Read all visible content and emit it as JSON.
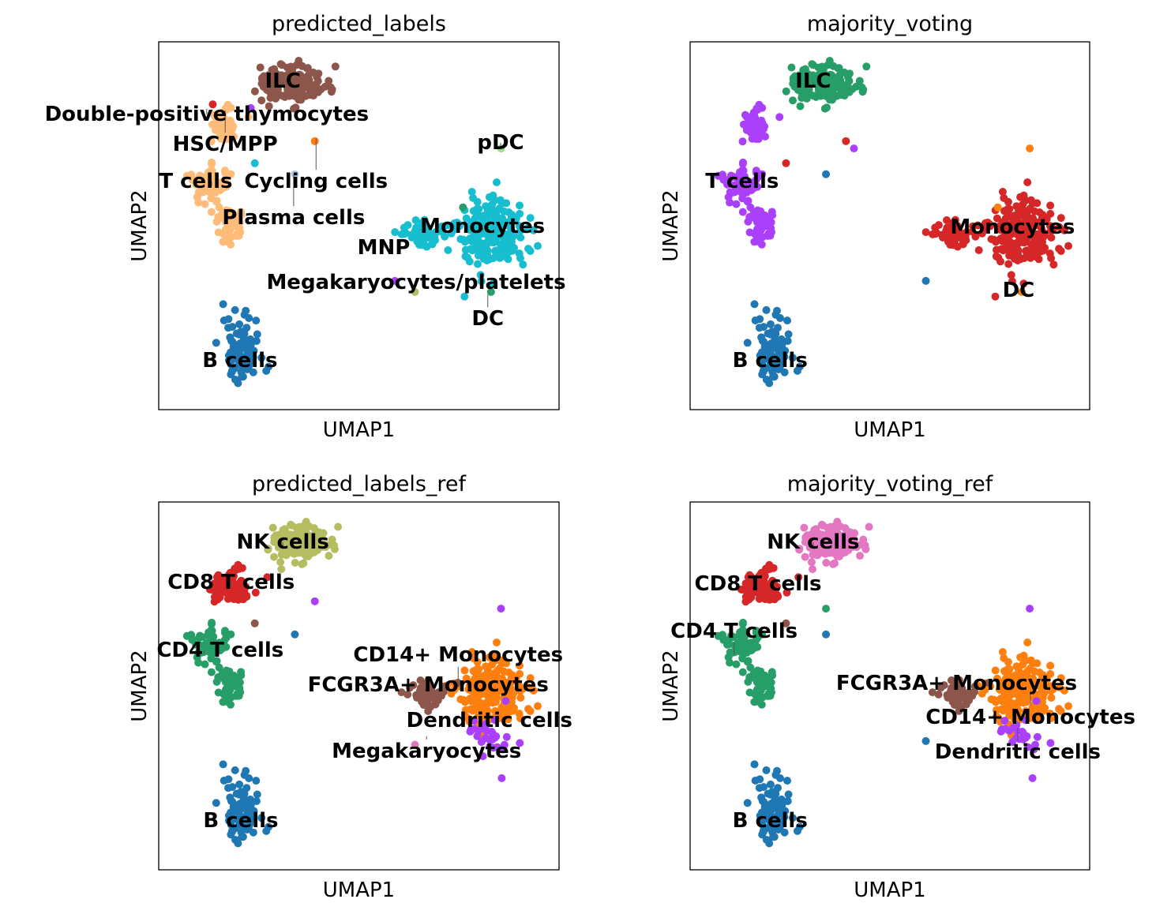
{
  "chart_data": [
    {
      "type": "scatter",
      "title": "predicted_labels",
      "xlabel": "UMAP1",
      "ylabel": "UMAP2",
      "xlim": [
        0,
        10
      ],
      "ylim": [
        0,
        10
      ],
      "grid": false,
      "clusters": [
        {
          "cx": 2.05,
          "cy": 1.6,
          "sx": 0.45,
          "sy": 0.75,
          "n": 90,
          "color": "#1f77b4"
        },
        {
          "cx": 1.3,
          "cy": 6.1,
          "sx": 0.4,
          "sy": 0.45,
          "n": 60,
          "color": "#ffbb78"
        },
        {
          "cx": 1.75,
          "cy": 5.0,
          "sx": 0.35,
          "sy": 0.4,
          "n": 50,
          "color": "#ffbb78"
        },
        {
          "cx": 1.6,
          "cy": 7.7,
          "sx": 0.35,
          "sy": 0.5,
          "n": 45,
          "color": "#ffbb78"
        },
        {
          "cx": 3.4,
          "cy": 8.85,
          "sx": 0.75,
          "sy": 0.45,
          "n": 160,
          "color": "#8c564b"
        },
        {
          "cx": 8.3,
          "cy": 4.8,
          "sx": 0.8,
          "sy": 0.95,
          "n": 220,
          "color": "#17becf"
        },
        {
          "cx": 6.6,
          "cy": 4.75,
          "sx": 0.55,
          "sy": 0.3,
          "n": 60,
          "color": "#17becf"
        }
      ],
      "extra_points": [
        {
          "x": 8.55,
          "y": 7.1,
          "color": "#98df8a"
        },
        {
          "x": 7.6,
          "y": 5.5,
          "color": "#279e68"
        },
        {
          "x": 8.3,
          "y": 3.2,
          "color": "#279e68"
        },
        {
          "x": 5.9,
          "y": 3.5,
          "color": "#aa40fc"
        },
        {
          "x": 6.4,
          "y": 3.2,
          "color": "#b5bd61"
        },
        {
          "x": 3.9,
          "y": 7.3,
          "color": "#ff7f0e"
        },
        {
          "x": 3.4,
          "y": 6.4,
          "color": "#aec7e8"
        },
        {
          "x": 2.4,
          "y": 6.7,
          "color": "#17becf"
        },
        {
          "x": 1.35,
          "y": 8.3,
          "color": "#d62728"
        },
        {
          "x": 2.3,
          "y": 8.2,
          "color": "#aa40fc"
        }
      ],
      "labels": [
        {
          "text": "ILC",
          "x": 3.1,
          "y": 8.82
        },
        {
          "text": "Double-positive thymocytes",
          "x": 1.2,
          "y": 8.18
        },
        {
          "text": "HSC/MPP",
          "x": 1.66,
          "y": 8.13
        },
        {
          "text": "Cycling cells",
          "x": 3.93,
          "y": 7.38
        },
        {
          "text": "pDC",
          "x": 8.54,
          "y": 7.15
        },
        {
          "text": "Plasma cells",
          "x": 3.37,
          "y": 6.39
        },
        {
          "text": "T cells",
          "x": 1.32,
          "y": 6.09
        },
        {
          "text": "MNP",
          "x": 5.62,
          "y": 4.55
        },
        {
          "text": "Monocytes",
          "x": 8.09,
          "y": 4.87
        },
        {
          "text": "Megakaryocytes/platelets",
          "x": 6.43,
          "y": 3.35
        },
        {
          "text": "DC",
          "x": 8.22,
          "y": 3.13
        },
        {
          "text": "B cells",
          "x": 2.03,
          "y": 1.22
        }
      ]
    },
    {
      "type": "scatter",
      "title": "majority_voting",
      "xlabel": "UMAP1",
      "ylabel": "UMAP2",
      "xlim": [
        0,
        10
      ],
      "ylim": [
        0,
        10
      ],
      "grid": false,
      "clusters": [
        {
          "cx": 2.05,
          "cy": 1.6,
          "sx": 0.45,
          "sy": 0.75,
          "n": 90,
          "color": "#1f77b4"
        },
        {
          "cx": 1.3,
          "cy": 6.1,
          "sx": 0.4,
          "sy": 0.45,
          "n": 60,
          "color": "#aa40fc"
        },
        {
          "cx": 1.75,
          "cy": 5.0,
          "sx": 0.35,
          "sy": 0.4,
          "n": 50,
          "color": "#aa40fc"
        },
        {
          "cx": 1.6,
          "cy": 7.7,
          "sx": 0.35,
          "sy": 0.5,
          "n": 45,
          "color": "#aa40fc"
        },
        {
          "cx": 3.4,
          "cy": 8.85,
          "sx": 0.75,
          "sy": 0.45,
          "n": 160,
          "color": "#279e68"
        },
        {
          "cx": 8.3,
          "cy": 4.8,
          "sx": 0.8,
          "sy": 0.95,
          "n": 220,
          "color": "#d62728"
        },
        {
          "cx": 6.6,
          "cy": 4.75,
          "sx": 0.55,
          "sy": 0.3,
          "n": 60,
          "color": "#d62728"
        }
      ],
      "extra_points": [
        {
          "x": 8.5,
          "y": 7.1,
          "color": "#ff7f0e"
        },
        {
          "x": 7.7,
          "y": 5.5,
          "color": "#ff7f0e"
        },
        {
          "x": 8.3,
          "y": 3.2,
          "color": "#ff7f0e"
        },
        {
          "x": 5.9,
          "y": 3.5,
          "color": "#1f77b4"
        },
        {
          "x": 3.4,
          "y": 6.4,
          "color": "#1f77b4"
        },
        {
          "x": 2.4,
          "y": 6.7,
          "color": "#d62728"
        },
        {
          "x": 3.9,
          "y": 7.3,
          "color": "#d62728"
        },
        {
          "x": 4.1,
          "y": 7.1,
          "color": "#aa40fc"
        }
      ],
      "labels": [
        {
          "text": "ILC",
          "x": 3.08,
          "y": 8.82
        },
        {
          "text": "T cells",
          "x": 1.3,
          "y": 6.09
        },
        {
          "text": "Monocytes",
          "x": 8.07,
          "y": 4.85
        },
        {
          "text": "DC",
          "x": 8.22,
          "y": 3.13
        },
        {
          "text": "B cells",
          "x": 2.0,
          "y": 1.22
        }
      ]
    },
    {
      "type": "scatter",
      "title": "predicted_labels_ref",
      "xlabel": "UMAP1",
      "ylabel": "UMAP2",
      "xlim": [
        0,
        10
      ],
      "ylim": [
        0,
        10
      ],
      "grid": false,
      "clusters": [
        {
          "cx": 2.05,
          "cy": 1.6,
          "sx": 0.45,
          "sy": 0.75,
          "n": 90,
          "color": "#1f77b4"
        },
        {
          "cx": 1.3,
          "cy": 6.1,
          "sx": 0.4,
          "sy": 0.45,
          "n": 60,
          "color": "#279e68"
        },
        {
          "cx": 1.75,
          "cy": 5.0,
          "sx": 0.35,
          "sy": 0.4,
          "n": 50,
          "color": "#279e68"
        },
        {
          "cx": 1.8,
          "cy": 7.7,
          "sx": 0.5,
          "sy": 0.5,
          "n": 80,
          "color": "#d62728"
        },
        {
          "cx": 3.6,
          "cy": 8.9,
          "sx": 0.65,
          "sy": 0.4,
          "n": 140,
          "color": "#b5bd61"
        },
        {
          "cx": 8.3,
          "cy": 4.8,
          "sx": 0.8,
          "sy": 0.95,
          "n": 200,
          "color": "#ff7f0e"
        },
        {
          "cx": 6.7,
          "cy": 4.75,
          "sx": 0.5,
          "sy": 0.3,
          "n": 60,
          "color": "#8c564b"
        },
        {
          "cx": 8.2,
          "cy": 3.7,
          "sx": 0.5,
          "sy": 0.6,
          "n": 30,
          "color": "#aa40fc"
        }
      ],
      "extra_points": [
        {
          "x": 8.55,
          "y": 7.1,
          "color": "#aa40fc"
        },
        {
          "x": 6.4,
          "y": 3.4,
          "color": "#e377c2"
        },
        {
          "x": 3.4,
          "y": 6.4,
          "color": "#1f77b4"
        },
        {
          "x": 2.4,
          "y": 6.7,
          "color": "#8c564b"
        },
        {
          "x": 3.9,
          "y": 7.3,
          "color": "#aa40fc"
        }
      ],
      "labels": [
        {
          "text": "NK cells",
          "x": 3.1,
          "y": 8.8
        },
        {
          "text": "CD8 T cells",
          "x": 1.81,
          "y": 7.7
        },
        {
          "text": "CD4 T cells",
          "x": 1.14,
          "y": 5.86
        },
        {
          "text": "FCGR3A+ Monocytes",
          "x": 6.73,
          "y": 4.91
        },
        {
          "text": "CD14+ Monocytes",
          "x": 7.48,
          "y": 4.96
        },
        {
          "text": "Dendritic cells",
          "x": 8.26,
          "y": 3.95
        },
        {
          "text": "Megakaryocytes",
          "x": 6.69,
          "y": 3.63
        },
        {
          "text": "B cells",
          "x": 2.05,
          "y": 1.22
        }
      ]
    },
    {
      "type": "scatter",
      "title": "majority_voting_ref",
      "xlabel": "UMAP1",
      "ylabel": "UMAP2",
      "xlim": [
        0,
        10
      ],
      "ylim": [
        0,
        10
      ],
      "grid": false,
      "clusters": [
        {
          "cx": 2.05,
          "cy": 1.6,
          "sx": 0.45,
          "sy": 0.75,
          "n": 90,
          "color": "#1f77b4"
        },
        {
          "cx": 1.3,
          "cy": 6.1,
          "sx": 0.4,
          "sy": 0.45,
          "n": 60,
          "color": "#279e68"
        },
        {
          "cx": 1.75,
          "cy": 5.0,
          "sx": 0.35,
          "sy": 0.4,
          "n": 50,
          "color": "#279e68"
        },
        {
          "cx": 1.8,
          "cy": 7.7,
          "sx": 0.5,
          "sy": 0.5,
          "n": 80,
          "color": "#d62728"
        },
        {
          "cx": 3.6,
          "cy": 8.9,
          "sx": 0.65,
          "sy": 0.4,
          "n": 140,
          "color": "#e377c2"
        },
        {
          "cx": 8.3,
          "cy": 4.8,
          "sx": 0.8,
          "sy": 0.95,
          "n": 200,
          "color": "#ff7f0e"
        },
        {
          "cx": 6.7,
          "cy": 4.75,
          "sx": 0.5,
          "sy": 0.3,
          "n": 60,
          "color": "#8c564b"
        },
        {
          "cx": 8.2,
          "cy": 3.7,
          "sx": 0.5,
          "sy": 0.6,
          "n": 25,
          "color": "#aa40fc"
        }
      ],
      "extra_points": [
        {
          "x": 8.5,
          "y": 7.1,
          "color": "#aa40fc"
        },
        {
          "x": 5.9,
          "y": 3.5,
          "color": "#1f77b4"
        },
        {
          "x": 3.4,
          "y": 6.4,
          "color": "#1f77b4"
        },
        {
          "x": 2.4,
          "y": 6.7,
          "color": "#8c564b"
        },
        {
          "x": 3.4,
          "y": 7.1,
          "color": "#279e68"
        }
      ],
      "labels": [
        {
          "text": "NK cells",
          "x": 3.08,
          "y": 8.8
        },
        {
          "text": "CD8 T cells",
          "x": 1.7,
          "y": 7.66
        },
        {
          "text": "CD4 T cells",
          "x": 1.1,
          "y": 5.86
        },
        {
          "text": "FCGR3A+ Monocytes",
          "x": 6.67,
          "y": 4.96
        },
        {
          "text": "CD14+ Monocytes",
          "x": 8.52,
          "y": 4.81
        },
        {
          "text": "Dendritic cells",
          "x": 8.2,
          "y": 3.86
        },
        {
          "text": "B cells",
          "x": 2.0,
          "y": 1.22
        }
      ]
    }
  ]
}
